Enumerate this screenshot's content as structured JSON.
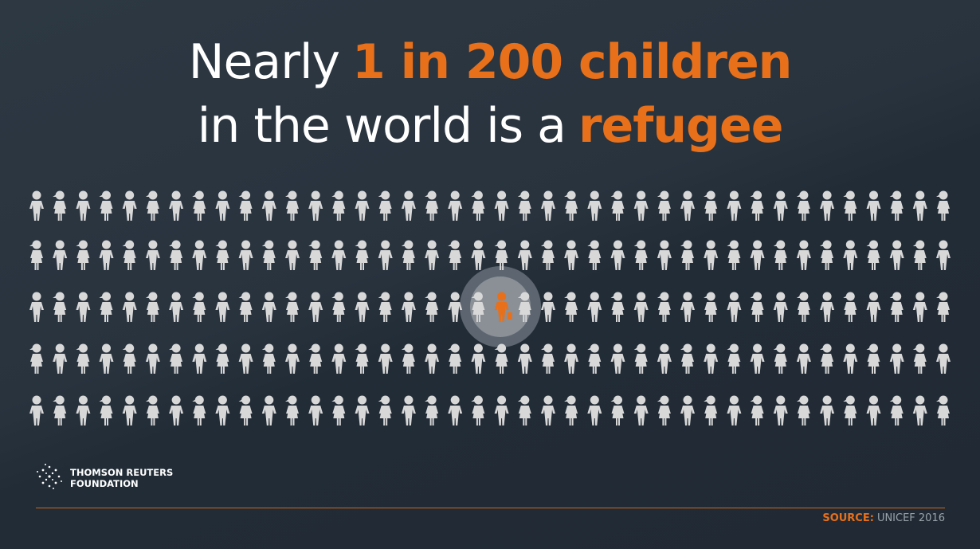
{
  "title": {
    "line1": {
      "lead": "Nearly",
      "highlight": "1 in 200 children"
    },
    "line2": {
      "lead": "in the world is a",
      "highlight": "refugee"
    }
  },
  "logo": {
    "line1": "THOMSON REUTERS",
    "line2": "FOUNDATION"
  },
  "source": {
    "label": "SOURCE:",
    "text": "UNICEF 2016"
  }
}
